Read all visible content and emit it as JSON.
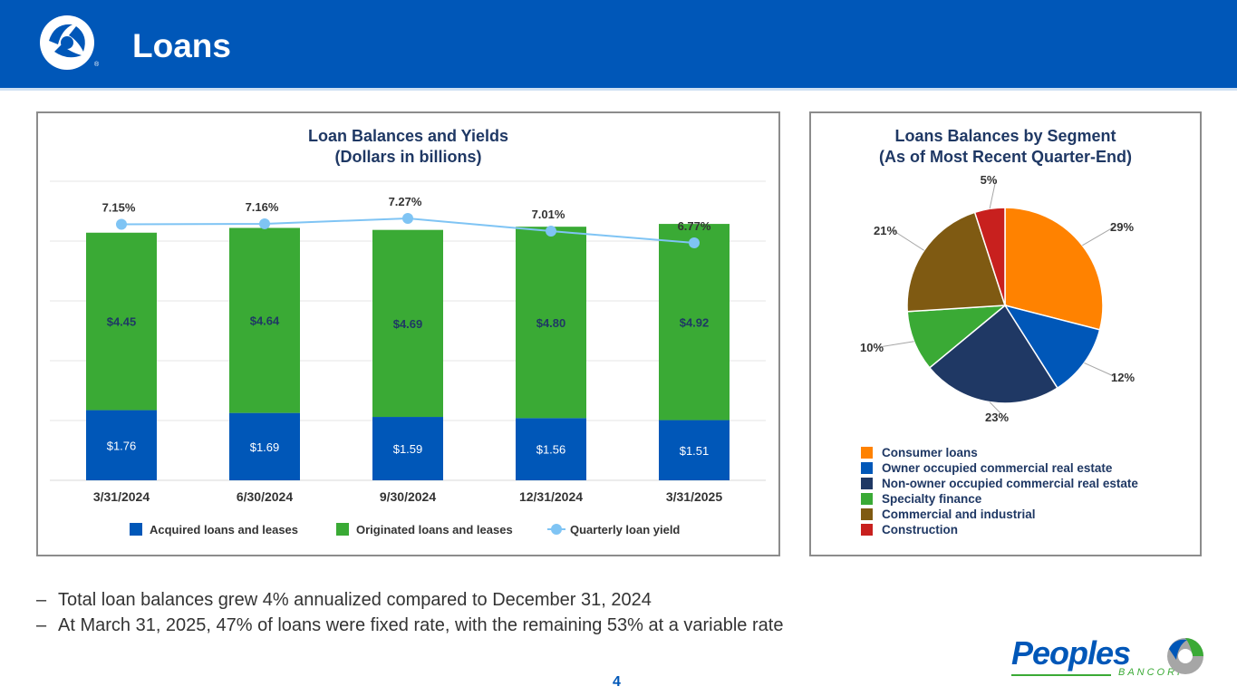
{
  "header": {
    "title": "Loans"
  },
  "chart_data": [
    {
      "type": "bar",
      "title": "Loan Balances and Yields",
      "subtitle": "(Dollars in billions)",
      "categories": [
        "3/31/2024",
        "6/30/2024",
        "9/30/2024",
        "12/31/2024",
        "3/31/2025"
      ],
      "series": [
        {
          "name": "Acquired loans and leases",
          "kind": "stacked-bar",
          "color": "#0057b8",
          "values": [
            1.76,
            1.69,
            1.59,
            1.56,
            1.51
          ],
          "labels": [
            "$1.76",
            "$1.69",
            "$1.59",
            "$1.56",
            "$1.51"
          ]
        },
        {
          "name": "Originated loans and leases",
          "kind": "stacked-bar",
          "color": "#3aaa35",
          "values": [
            4.45,
            4.64,
            4.69,
            4.8,
            4.92
          ],
          "labels": [
            "$4.45",
            "$4.64",
            "$4.69",
            "$4.80",
            "$4.92"
          ]
        },
        {
          "name": "Quarterly loan yield",
          "kind": "line",
          "color": "#7fc4f4",
          "values": [
            7.15,
            7.16,
            7.27,
            7.01,
            6.77
          ],
          "labels": [
            "7.15%",
            "7.16%",
            "7.27%",
            "7.01%",
            "6.77%"
          ]
        }
      ],
      "ylim": [
        0,
        7.5
      ],
      "grid": true,
      "legend": "bottom"
    },
    {
      "type": "pie",
      "title": "Loans Balances by Segment",
      "subtitle": "(As of Most Recent Quarter-End)",
      "slices": [
        {
          "name": "Consumer loans",
          "value": 29,
          "label": "29%",
          "color": "#ff8200"
        },
        {
          "name": "Owner occupied commercial real estate",
          "value": 12,
          "label": "12%",
          "color": "#0057b8"
        },
        {
          "name": "Non-owner occupied commercial real estate",
          "value": 23,
          "label": "23%",
          "color": "#1f3864"
        },
        {
          "name": "Specialty finance",
          "value": 10,
          "label": "10%",
          "color": "#3aaa35"
        },
        {
          "name": "Commercial and industrial",
          "value": 21,
          "label": "21%",
          "color": "#7f5a12"
        },
        {
          "name": "Construction",
          "value": 5,
          "label": "5%",
          "color": "#c8201e"
        }
      ],
      "legend": "bottom"
    }
  ],
  "bullets": [
    "Total loan balances grew 4% annualized compared to December 31, 2024",
    "At March 31, 2025, 47% of loans were fixed rate, with the remaining 53% at a variable rate"
  ],
  "bullet_marker": "–",
  "page_number": "4",
  "logo": {
    "name": "Peoples",
    "sub": "BANCORP"
  }
}
